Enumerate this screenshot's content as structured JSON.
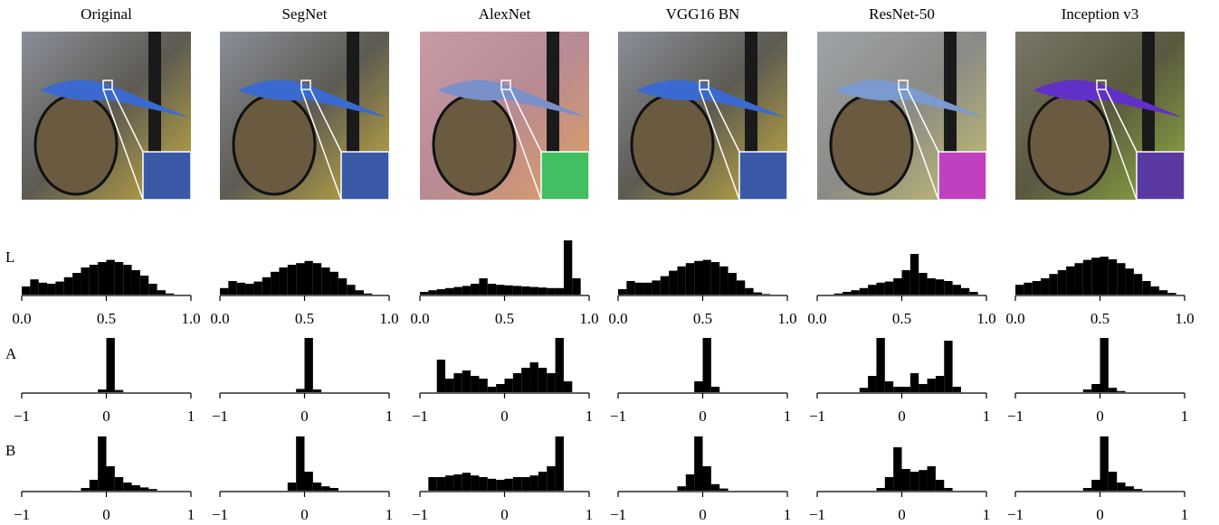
{
  "columns": [
    "Original",
    "SegNet",
    "AlexNet",
    "VGG16 BN",
    "ResNet-50",
    "Inception v3"
  ],
  "row_labels": [
    "L",
    "A",
    "B"
  ],
  "chart_data": [
    {
      "type": "histogram",
      "color": "#000000",
      "bins": [
        0,
        0.05,
        0.1,
        0.15,
        0.2,
        0.25,
        0.3,
        0.35,
        0.4,
        0.45,
        0.5,
        0.55,
        0.6,
        0.65,
        0.7,
        0.75,
        0.8,
        0.85,
        0.9,
        0.95,
        1
      ],
      "values": [
        15,
        28,
        22,
        20,
        24,
        32,
        40,
        50,
        55,
        60,
        64,
        60,
        55,
        45,
        35,
        20,
        8,
        2,
        0,
        0
      ],
      "xlim": [
        0,
        1
      ],
      "ylim": [
        0,
        100
      ],
      "xticks": [
        {
          "value": 0,
          "label": "0.0"
        },
        {
          "value": 0.5,
          "label": "0.5"
        },
        {
          "value": 1,
          "label": "1.0"
        }
      ]
    },
    {
      "type": "histogram",
      "color": "#000000",
      "bins": [
        0,
        0.05,
        0.1,
        0.15,
        0.2,
        0.25,
        0.3,
        0.35,
        0.4,
        0.45,
        0.5,
        0.55,
        0.6,
        0.65,
        0.7,
        0.75,
        0.8,
        0.85,
        0.9,
        0.95,
        1
      ],
      "values": [
        12,
        25,
        22,
        20,
        24,
        32,
        42,
        50,
        55,
        58,
        62,
        58,
        50,
        42,
        30,
        18,
        8,
        2,
        0,
        0
      ],
      "xlim": [
        0,
        1
      ],
      "ylim": [
        0,
        100
      ],
      "xticks": [
        {
          "value": 0,
          "label": "0.0"
        },
        {
          "value": 0.5,
          "label": "0.5"
        },
        {
          "value": 1,
          "label": "1.0"
        }
      ]
    },
    {
      "type": "histogram",
      "color": "#000000",
      "bins": [
        0,
        0.05,
        0.1,
        0.15,
        0.2,
        0.25,
        0.3,
        0.35,
        0.4,
        0.45,
        0.5,
        0.55,
        0.6,
        0.65,
        0.7,
        0.75,
        0.8,
        0.85,
        0.9,
        0.95,
        1
      ],
      "values": [
        5,
        8,
        10,
        12,
        14,
        16,
        20,
        30,
        20,
        18,
        17,
        16,
        15,
        14,
        13,
        12,
        12,
        100,
        30,
        0
      ],
      "xlim": [
        0,
        1
      ],
      "ylim": [
        0,
        100
      ],
      "xticks": [
        {
          "value": 0,
          "label": "0.0"
        },
        {
          "value": 0.5,
          "label": "0.5"
        },
        {
          "value": 1,
          "label": "1.0"
        }
      ]
    },
    {
      "type": "histogram",
      "color": "#000000",
      "bins": [
        0,
        0.05,
        0.1,
        0.15,
        0.2,
        0.25,
        0.3,
        0.35,
        0.4,
        0.45,
        0.5,
        0.55,
        0.6,
        0.65,
        0.7,
        0.75,
        0.8,
        0.85,
        0.9,
        0.95,
        1
      ],
      "values": [
        10,
        25,
        22,
        22,
        26,
        34,
        44,
        52,
        58,
        62,
        64,
        60,
        52,
        40,
        26,
        12,
        4,
        1,
        0,
        0
      ],
      "xlim": [
        0,
        1
      ],
      "ylim": [
        0,
        100
      ],
      "xticks": [
        {
          "value": 0,
          "label": "0.0"
        },
        {
          "value": 0.5,
          "label": "0.5"
        },
        {
          "value": 1,
          "label": "1.0"
        }
      ]
    },
    {
      "type": "histogram",
      "color": "#000000",
      "bins": [
        0,
        0.05,
        0.1,
        0.15,
        0.2,
        0.25,
        0.3,
        0.35,
        0.4,
        0.45,
        0.5,
        0.55,
        0.6,
        0.65,
        0.7,
        0.75,
        0.8,
        0.85,
        0.9,
        0.95,
        1
      ],
      "values": [
        0,
        0,
        2,
        5,
        8,
        12,
        18,
        22,
        24,
        30,
        45,
        75,
        40,
        30,
        28,
        25,
        18,
        12,
        5,
        0
      ],
      "xlim": [
        0,
        1
      ],
      "ylim": [
        0,
        100
      ],
      "xticks": [
        {
          "value": 0,
          "label": "0.0"
        },
        {
          "value": 0.5,
          "label": "0.5"
        },
        {
          "value": 1,
          "label": "1.0"
        }
      ]
    },
    {
      "type": "histogram",
      "color": "#000000",
      "bins": [
        0,
        0.05,
        0.1,
        0.15,
        0.2,
        0.25,
        0.3,
        0.35,
        0.4,
        0.45,
        0.5,
        0.55,
        0.6,
        0.65,
        0.7,
        0.75,
        0.8,
        0.85,
        0.9,
        0.95,
        1
      ],
      "values": [
        18,
        22,
        25,
        30,
        38,
        45,
        52,
        58,
        64,
        68,
        70,
        65,
        58,
        48,
        38,
        25,
        15,
        8,
        3,
        0
      ],
      "xlim": [
        0,
        1
      ],
      "ylim": [
        0,
        100
      ],
      "xticks": [
        {
          "value": 0,
          "label": "0.0"
        },
        {
          "value": 0.5,
          "label": "0.5"
        },
        {
          "value": 1,
          "label": "1.0"
        }
      ]
    },
    {
      "type": "histogram",
      "color": "#000000",
      "bins": [
        -1,
        -0.9,
        -0.8,
        -0.7,
        -0.6,
        -0.5,
        -0.4,
        -0.3,
        -0.2,
        -0.1,
        0,
        0.1,
        0.2,
        0.3,
        0.4,
        0.5,
        0.6,
        0.7,
        0.8,
        0.9,
        1
      ],
      "values": [
        0,
        0,
        0,
        0,
        0,
        0,
        0,
        0,
        0,
        5,
        100,
        4,
        0,
        0,
        0,
        0,
        0,
        0,
        0,
        0
      ],
      "xlim": [
        -1,
        1
      ],
      "ylim": [
        0,
        100
      ],
      "xticks": [
        {
          "value": -1,
          "label": "−1"
        },
        0,
        1
      ]
    },
    {
      "type": "histogram",
      "color": "#000000",
      "bins": [
        -1,
        -0.9,
        -0.8,
        -0.7,
        -0.6,
        -0.5,
        -0.4,
        -0.3,
        -0.2,
        -0.1,
        0,
        0.1,
        0.2,
        0.3,
        0.4,
        0.5,
        0.6,
        0.7,
        0.8,
        0.9,
        1
      ],
      "values": [
        0,
        0,
        0,
        0,
        0,
        0,
        0,
        0,
        0,
        6,
        100,
        5,
        0,
        0,
        0,
        0,
        0,
        0,
        0,
        0
      ],
      "xlim": [
        -1,
        1
      ],
      "ylim": [
        0,
        100
      ],
      "xticks": [
        {
          "value": -1,
          "label": "−1"
        },
        0,
        1
      ]
    },
    {
      "type": "histogram",
      "color": "#000000",
      "bins": [
        -1,
        -0.9,
        -0.8,
        -0.7,
        -0.6,
        -0.5,
        -0.4,
        -0.3,
        -0.2,
        -0.1,
        0,
        0.1,
        0.2,
        0.3,
        0.4,
        0.5,
        0.6,
        0.7,
        0.8,
        0.9,
        1
      ],
      "values": [
        0,
        0,
        60,
        25,
        35,
        40,
        30,
        25,
        10,
        15,
        25,
        35,
        45,
        55,
        45,
        35,
        100,
        20,
        0,
        0
      ],
      "xlim": [
        -1,
        1
      ],
      "ylim": [
        0,
        100
      ],
      "xticks": [
        {
          "value": -1,
          "label": "−1"
        },
        0,
        1
      ]
    },
    {
      "type": "histogram",
      "color": "#000000",
      "bins": [
        -1,
        -0.9,
        -0.8,
        -0.7,
        -0.6,
        -0.5,
        -0.4,
        -0.3,
        -0.2,
        -0.1,
        0,
        0.1,
        0.2,
        0.3,
        0.4,
        0.5,
        0.6,
        0.7,
        0.8,
        0.9,
        1
      ],
      "values": [
        0,
        0,
        0,
        0,
        0,
        0,
        0,
        0,
        0,
        20,
        100,
        10,
        0,
        0,
        0,
        0,
        0,
        0,
        0,
        0
      ],
      "xlim": [
        -1,
        1
      ],
      "ylim": [
        0,
        100
      ],
      "xticks": [
        {
          "value": -1,
          "label": "−1"
        },
        0,
        1
      ]
    },
    {
      "type": "histogram",
      "color": "#000000",
      "bins": [
        -1,
        -0.9,
        -0.8,
        -0.7,
        -0.6,
        -0.5,
        -0.4,
        -0.3,
        -0.2,
        -0.1,
        0,
        0.1,
        0.2,
        0.3,
        0.4,
        0.5,
        0.6,
        0.7,
        0.8,
        0.9,
        1
      ],
      "values": [
        0,
        0,
        0,
        0,
        0,
        8,
        30,
        100,
        20,
        10,
        10,
        35,
        15,
        25,
        30,
        95,
        10,
        0,
        0,
        0
      ],
      "xlim": [
        -1,
        1
      ],
      "ylim": [
        0,
        100
      ],
      "xticks": [
        {
          "value": -1,
          "label": "−1"
        },
        0,
        1
      ]
    },
    {
      "type": "histogram",
      "color": "#000000",
      "bins": [
        -1,
        -0.9,
        -0.8,
        -0.7,
        -0.6,
        -0.5,
        -0.4,
        -0.3,
        -0.2,
        -0.1,
        0,
        0.1,
        0.2,
        0.3,
        0.4,
        0.5,
        0.6,
        0.7,
        0.8,
        0.9,
        1
      ],
      "values": [
        0,
        0,
        0,
        0,
        0,
        0,
        0,
        0,
        5,
        15,
        100,
        8,
        2,
        0,
        0,
        0,
        0,
        0,
        0,
        0
      ],
      "xlim": [
        -1,
        1
      ],
      "ylim": [
        0,
        100
      ],
      "xticks": [
        {
          "value": -1,
          "label": "−1"
        },
        0,
        1
      ]
    },
    {
      "type": "histogram",
      "color": "#000000",
      "bins": [
        -1,
        -0.9,
        -0.8,
        -0.7,
        -0.6,
        -0.5,
        -0.4,
        -0.3,
        -0.2,
        -0.1,
        0,
        0.1,
        0.2,
        0.3,
        0.4,
        0.5,
        0.6,
        0.7,
        0.8,
        0.9,
        1
      ],
      "values": [
        0,
        0,
        0,
        0,
        0,
        0,
        0,
        5,
        20,
        100,
        45,
        25,
        15,
        10,
        6,
        3,
        0,
        0,
        0,
        0
      ],
      "xlim": [
        -1,
        1
      ],
      "ylim": [
        0,
        100
      ],
      "xticks": [
        {
          "value": -1,
          "label": "−1"
        },
        0,
        1
      ]
    },
    {
      "type": "histogram",
      "color": "#000000",
      "bins": [
        -1,
        -0.9,
        -0.8,
        -0.7,
        -0.6,
        -0.5,
        -0.4,
        -0.3,
        -0.2,
        -0.1,
        0,
        0.1,
        0.2,
        0.3,
        0.4,
        0.5,
        0.6,
        0.7,
        0.8,
        0.9,
        1
      ],
      "values": [
        0,
        0,
        0,
        0,
        0,
        0,
        0,
        0,
        15,
        100,
        35,
        15,
        8,
        5,
        0,
        0,
        0,
        0,
        0,
        0
      ],
      "xlim": [
        -1,
        1
      ],
      "ylim": [
        0,
        100
      ],
      "xticks": [
        {
          "value": -1,
          "label": "−1"
        },
        0,
        1
      ]
    },
    {
      "type": "histogram",
      "color": "#000000",
      "bins": [
        -1,
        -0.9,
        -0.8,
        -0.7,
        -0.6,
        -0.5,
        -0.4,
        -0.3,
        -0.2,
        -0.1,
        0,
        0.1,
        0.2,
        0.3,
        0.4,
        0.5,
        0.6,
        0.7,
        0.8,
        0.9,
        1
      ],
      "values": [
        0,
        25,
        25,
        28,
        30,
        33,
        28,
        25,
        22,
        20,
        22,
        25,
        25,
        28,
        35,
        45,
        100,
        0,
        0,
        0
      ],
      "xlim": [
        -1,
        1
      ],
      "ylim": [
        0,
        100
      ],
      "xticks": [
        {
          "value": -1,
          "label": "−1"
        },
        0,
        1
      ]
    },
    {
      "type": "histogram",
      "color": "#000000",
      "bins": [
        -1,
        -0.9,
        -0.8,
        -0.7,
        -0.6,
        -0.5,
        -0.4,
        -0.3,
        -0.2,
        -0.1,
        0,
        0.1,
        0.2,
        0.3,
        0.4,
        0.5,
        0.6,
        0.7,
        0.8,
        0.9,
        1
      ],
      "values": [
        0,
        0,
        0,
        0,
        0,
        0,
        0,
        8,
        30,
        100,
        45,
        12,
        4,
        0,
        0,
        0,
        0,
        0,
        0,
        0
      ],
      "xlim": [
        -1,
        1
      ],
      "ylim": [
        0,
        100
      ],
      "xticks": [
        {
          "value": -1,
          "label": "−1"
        },
        0,
        1
      ]
    },
    {
      "type": "histogram",
      "color": "#000000",
      "bins": [
        -1,
        -0.9,
        -0.8,
        -0.7,
        -0.6,
        -0.5,
        -0.4,
        -0.3,
        -0.2,
        -0.1,
        0,
        0.1,
        0.2,
        0.3,
        0.4,
        0.5,
        0.6,
        0.7,
        0.8,
        0.9,
        1
      ],
      "values": [
        0,
        0,
        0,
        0,
        0,
        0,
        0,
        5,
        25,
        80,
        40,
        35,
        38,
        45,
        20,
        5,
        0,
        0,
        0,
        0
      ],
      "xlim": [
        -1,
        1
      ],
      "ylim": [
        0,
        100
      ],
      "xticks": [
        {
          "value": -1,
          "label": "−1"
        },
        0,
        1
      ]
    },
    {
      "type": "histogram",
      "color": "#000000",
      "bins": [
        -1,
        -0.9,
        -0.8,
        -0.7,
        -0.6,
        -0.5,
        -0.4,
        -0.3,
        -0.2,
        -0.1,
        0,
        0.1,
        0.2,
        0.3,
        0.4,
        0.5,
        0.6,
        0.7,
        0.8,
        0.9,
        1
      ],
      "values": [
        0,
        0,
        0,
        0,
        0,
        0,
        0,
        0,
        5,
        20,
        100,
        35,
        15,
        8,
        3,
        0,
        0,
        0,
        0,
        0
      ],
      "xlim": [
        -1,
        1
      ],
      "ylim": [
        0,
        100
      ],
      "xticks": [
        {
          "value": -1,
          "label": "−1"
        },
        0,
        1
      ]
    }
  ]
}
